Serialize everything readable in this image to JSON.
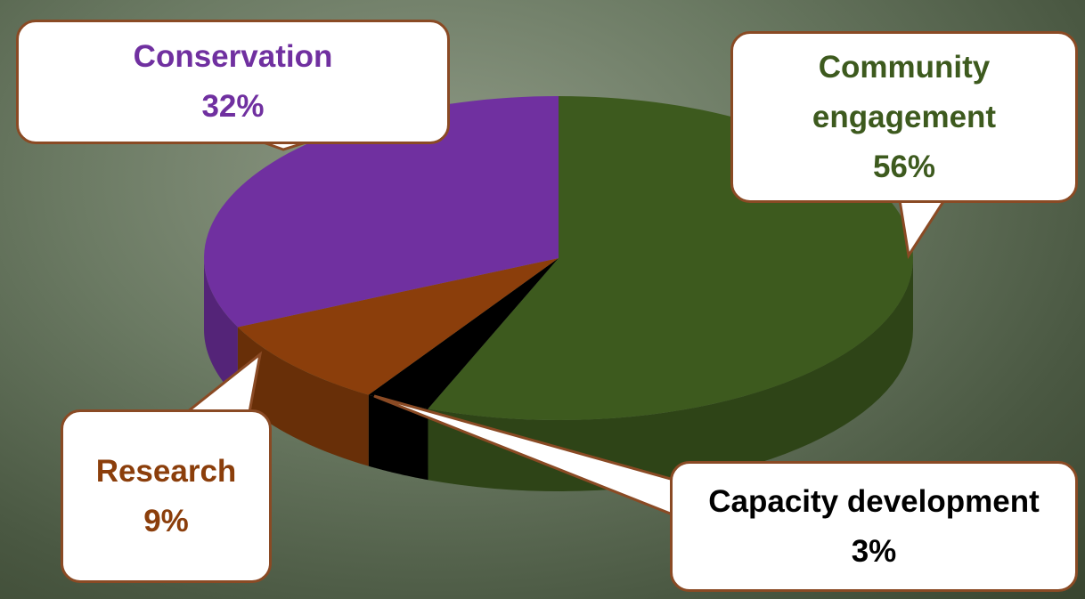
{
  "chart_data": {
    "type": "pie",
    "categories": [
      "Community engagement",
      "Capacity development",
      "Research",
      "Conservation"
    ],
    "values": [
      56,
      3,
      9,
      32
    ],
    "value_labels": [
      "56%",
      "3%",
      "9%",
      "32%"
    ],
    "colors": [
      "#3d5a1e",
      "#000000",
      "#8b3e0b",
      "#7030a0"
    ],
    "label_colors": [
      "#3d5a1e",
      "#000000",
      "#8b3e0b",
      "#7030a0"
    ]
  }
}
